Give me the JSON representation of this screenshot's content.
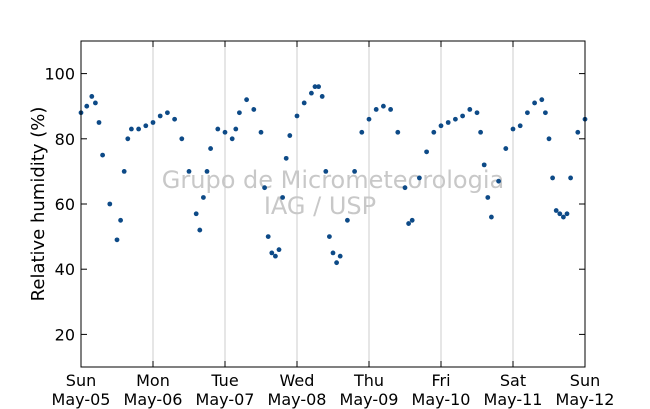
{
  "chart_data": {
    "type": "scatter",
    "title": "",
    "xlabel": "",
    "ylabel": "Relative humidity (%)",
    "xlim": [
      0,
      7
    ],
    "ylim": [
      10,
      110
    ],
    "yticks": [
      20,
      40,
      60,
      80,
      100
    ],
    "x_ticks": [
      {
        "x": 0,
        "day": "Sun",
        "date": "May-05"
      },
      {
        "x": 1,
        "day": "Mon",
        "date": "May-06"
      },
      {
        "x": 2,
        "day": "Tue",
        "date": "May-07"
      },
      {
        "x": 3,
        "day": "Wed",
        "date": "May-08"
      },
      {
        "x": 4,
        "day": "Thu",
        "date": "May-09"
      },
      {
        "x": 5,
        "day": "Fri",
        "date": "May-10"
      },
      {
        "x": 6,
        "day": "Sat",
        "date": "May-11"
      },
      {
        "x": 7,
        "day": "Sun",
        "date": "May-12"
      }
    ],
    "grid": "vertical",
    "marker_color": "#0d4a87",
    "watermark": [
      "Grupo de Micrometeorologia",
      "IAG / USP"
    ],
    "series": [
      {
        "x": [
          0,
          0.08,
          0.15,
          0.2,
          0.25,
          0.3,
          0.4,
          0.5,
          0.55,
          0.6,
          0.65,
          0.7,
          0.8,
          0.9,
          1.0,
          1.1,
          1.2,
          1.3,
          1.4,
          1.5,
          1.6,
          1.65,
          1.7,
          1.75,
          1.8,
          1.9,
          2.0,
          2.1,
          2.15,
          2.2,
          2.3,
          2.4,
          2.5,
          2.55,
          2.6,
          2.65,
          2.7,
          2.75,
          2.8,
          2.85,
          2.9,
          3.0,
          3.1,
          3.2,
          3.25,
          3.3,
          3.35,
          3.4,
          3.45,
          3.5,
          3.55,
          3.6,
          3.7,
          3.8,
          3.9,
          4.0,
          4.1,
          4.2,
          4.3,
          4.4,
          4.5,
          4.55,
          4.6,
          4.7,
          4.8,
          4.9,
          5.0,
          5.1,
          5.2,
          5.3,
          5.4,
          5.5,
          5.55,
          5.6,
          5.65,
          5.7,
          5.8,
          5.9,
          6.0,
          6.1,
          6.2,
          6.3,
          6.4,
          6.45,
          6.5,
          6.55,
          6.6,
          6.65,
          6.7,
          6.75,
          6.8,
          6.9,
          7.0
        ],
        "y": [
          88,
          90,
          93,
          91,
          85,
          75,
          60,
          49,
          55,
          70,
          80,
          83,
          83,
          84,
          85,
          87,
          88,
          86,
          80,
          70,
          57,
          52,
          62,
          70,
          77,
          83,
          82,
          80,
          83,
          88,
          92,
          89,
          82,
          65,
          50,
          45,
          44,
          46,
          62,
          74,
          81,
          87,
          91,
          94,
          96,
          96,
          93,
          70,
          50,
          45,
          42,
          44,
          55,
          70,
          82,
          86,
          89,
          90,
          89,
          82,
          65,
          54,
          55,
          68,
          76,
          82,
          84,
          85,
          86,
          87,
          89,
          88,
          82,
          72,
          62,
          56,
          67,
          77,
          83,
          84,
          88,
          91,
          92,
          88,
          80,
          68,
          58,
          57,
          56,
          57,
          68,
          82,
          86
        ]
      }
    ]
  }
}
